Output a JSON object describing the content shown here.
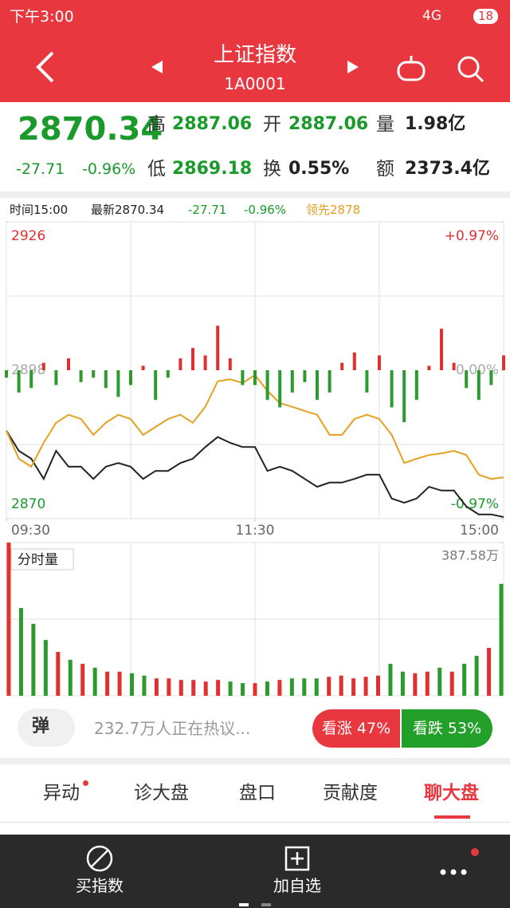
{
  "status_bar": {
    "time": "下午3:00",
    "network": "4G",
    "battery": "18"
  },
  "header": {
    "title": "上证指数",
    "code": "1A0001"
  },
  "quote": {
    "price": "2870.34",
    "change": "-27.71",
    "change_pct": "-0.96%",
    "stats": [
      {
        "label": "高",
        "value": "2887.06"
      },
      {
        "label": "开",
        "value": "2887.06"
      },
      {
        "label": "量",
        "value": "1.98亿"
      },
      {
        "label": "低",
        "value": "2869.18"
      },
      {
        "label": "换",
        "value": "0.55%"
      },
      {
        "label": "额",
        "value": "2373.4亿"
      }
    ]
  },
  "info_bar": {
    "time": "时间15:00",
    "latest": "最新2870.34",
    "change": "-27.71",
    "change_pct": "-0.96%",
    "leader": "领先2878"
  },
  "chart_data": [
    {
      "type": "line",
      "x": [
        0,
        6,
        12,
        18,
        24,
        30,
        36,
        42,
        48,
        54,
        60,
        66,
        72,
        78,
        84,
        90,
        96,
        102,
        108,
        114,
        120,
        126,
        132,
        138,
        144,
        150,
        156,
        162,
        168,
        174,
        180,
        186,
        192,
        198,
        204,
        210,
        216,
        222,
        228,
        234,
        240
      ],
      "xlim": [
        0,
        240
      ],
      "xticks": [
        {
          "value": 0,
          "label": "09:30"
        },
        {
          "value": 120,
          "label": "11:30"
        },
        {
          "value": 240,
          "label": "15:00"
        }
      ],
      "ylim": [
        2870,
        2926
      ],
      "yticks": [
        2926,
        2898,
        2870
      ],
      "y2lim": [
        -0.97,
        0.97
      ],
      "y2ticks": [
        {
          "value": 0.97,
          "label": "+0.97%"
        },
        {
          "value": 0,
          "label": "0.00%"
        },
        {
          "value": -0.97,
          "label": "-0.97%"
        }
      ],
      "series": [
        {
          "color": "#222222",
          "values": [
            2886.6,
            2882.8,
            2881.3,
            2877.5,
            2882.8,
            2879.8,
            2879.8,
            2877.5,
            2879.8,
            2880.5,
            2879.8,
            2877.5,
            2879.0,
            2879.0,
            2880.5,
            2881.3,
            2883.5,
            2885.4,
            2884.3,
            2883.5,
            2883.5,
            2879.0,
            2879.8,
            2879.0,
            2877.5,
            2876.0,
            2876.8,
            2876.8,
            2877.5,
            2878.3,
            2878.3,
            2873.8,
            2873.0,
            2873.8,
            2876.0,
            2875.3,
            2875.3,
            2872.3,
            2870.8,
            2870.8,
            2870.3
          ]
        },
        {
          "color": "#e6a020",
          "values": [
            2886.6,
            2881.3,
            2879.8,
            2884.3,
            2888.1,
            2889.6,
            2888.8,
            2885.8,
            2888.1,
            2889.6,
            2888.8,
            2885.8,
            2887.3,
            2888.8,
            2889.6,
            2888.1,
            2891.1,
            2895.9,
            2896.3,
            2895.6,
            2897.1,
            2894.1,
            2891.8,
            2891.1,
            2890.3,
            2889.6,
            2885.8,
            2885.8,
            2888.8,
            2889.6,
            2888.8,
            2885.8,
            2880.5,
            2881.3,
            2882.0,
            2882.3,
            2882.8,
            2882.0,
            2878.3,
            2877.5,
            2877.8
          ]
        }
      ]
    },
    {
      "type": "bar",
      "x": [
        0,
        6,
        12,
        18,
        24,
        30,
        36,
        42,
        48,
        54,
        60,
        66,
        72,
        78,
        84,
        90,
        96,
        102,
        108,
        114,
        120,
        126,
        132,
        138,
        144,
        150,
        156,
        162,
        168,
        174,
        180,
        186,
        192,
        198,
        204,
        210,
        216,
        222,
        228,
        234,
        240
      ],
      "xlim": [
        0,
        240
      ],
      "ylim": [
        -100,
        100
      ],
      "values": [
        -5,
        -15,
        -12,
        5,
        -10,
        8,
        -8,
        -5,
        -12,
        -18,
        -10,
        3,
        -20,
        -5,
        8,
        15,
        10,
        30,
        8,
        -10,
        -10,
        -20,
        -25,
        -15,
        -8,
        -20,
        -15,
        5,
        12,
        -15,
        10,
        -25,
        -35,
        -20,
        3,
        28,
        5,
        -12,
        -20,
        -10,
        10
      ],
      "colors": {
        "up": "#e03030",
        "down": "#2c9a2c"
      }
    },
    {
      "type": "volume",
      "title": "分时量",
      "x": [
        0,
        6,
        12,
        18,
        24,
        30,
        36,
        42,
        48,
        54,
        60,
        66,
        72,
        78,
        84,
        90,
        96,
        102,
        108,
        114,
        120,
        126,
        132,
        138,
        144,
        150,
        156,
        162,
        168,
        174,
        180,
        186,
        192,
        198,
        204,
        210,
        216,
        222,
        228,
        234,
        240
      ],
      "xlim": [
        0,
        240
      ],
      "ylim": [
        0,
        387.58
      ],
      "yticks": [
        {
          "value": 387.58,
          "label": "387.58万"
        }
      ],
      "values": [
        387.58,
        222,
        182,
        141,
        111,
        91,
        81,
        71,
        61,
        61,
        57,
        51,
        44,
        44,
        40,
        40,
        36,
        40,
        36,
        32,
        32,
        36,
        40,
        44,
        44,
        44,
        48,
        51,
        44,
        48,
        51,
        81,
        61,
        57,
        61,
        71,
        61,
        81,
        101,
        121,
        283
      ],
      "colors": {
        "up": "#e03030",
        "down": "#2c9a2c"
      }
    }
  ],
  "discussion": {
    "badge": "弹",
    "text": "232.7万人正在热议...",
    "bull": "看涨 47%",
    "bear": "看跌 53%"
  },
  "tabs": [
    "异动",
    "诊大盘",
    "盘口",
    "贡献度",
    "聊大盘"
  ],
  "bottom_nav": [
    "买指数",
    "加自选"
  ]
}
